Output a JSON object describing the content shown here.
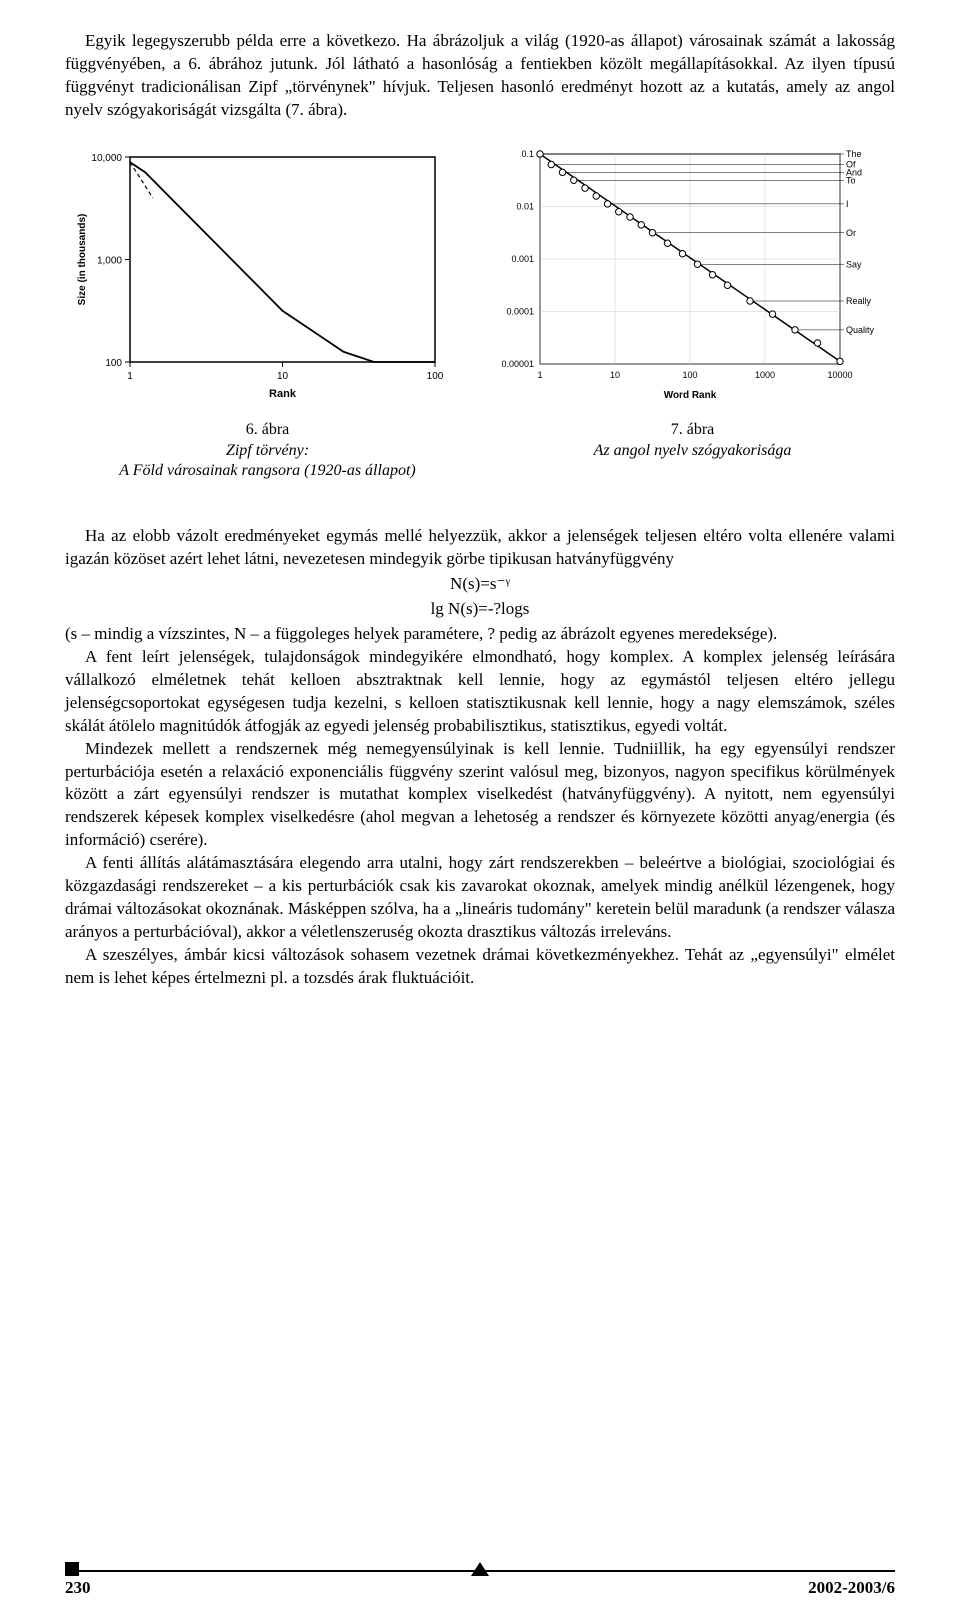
{
  "intro": {
    "p1": "Egyik legegyszerubb példa erre a következo. Ha ábrázoljuk a világ (1920-as állapot) városainak számát a lakosság függvényében, a 6. ábrához jutunk. Jól látható a hasonlóság a fentiekben közölt megállapításokkal. Az ilyen típusú függvényt tradicionálisan Zipf „törvénynek\" hívjuk. Teljesen hasonló eredményt hozott az a kutatás, amely az angol nyelv szógyakoriságát vizsgálta (7. ábra)."
  },
  "fig6": {
    "type": "loglog-line",
    "caption_num": "6. ábra",
    "caption_title": "Zipf törvény:",
    "caption_sub": "A Föld városainak rangsora (1920-as állapot)",
    "xlabel": "Rank",
    "ylabel": "Size (in thousands)",
    "xticks": [
      "1",
      "10",
      "100"
    ],
    "yticks": [
      "100",
      "1,000",
      "10,000"
    ],
    "line_color": "#000000",
    "background_color": "#ffffff",
    "frame_color": "#000000",
    "data_log": [
      [
        0,
        3.95
      ],
      [
        0.05,
        3.9
      ],
      [
        0.1,
        3.85
      ],
      [
        0.2,
        3.7
      ],
      [
        0.3,
        3.55
      ],
      [
        0.4,
        3.4
      ],
      [
        0.5,
        3.25
      ],
      [
        0.6,
        3.1
      ],
      [
        0.7,
        2.95
      ],
      [
        0.8,
        2.8
      ],
      [
        0.9,
        2.65
      ],
      [
        1.0,
        2.5
      ],
      [
        1.1,
        2.4
      ],
      [
        1.2,
        2.3
      ],
      [
        1.3,
        2.2
      ],
      [
        1.4,
        2.1
      ],
      [
        1.5,
        2.05
      ],
      [
        1.6,
        2.0
      ],
      [
        1.7,
        2.0
      ],
      [
        1.8,
        2.0
      ],
      [
        1.9,
        2.0
      ],
      [
        2.0,
        2.0
      ]
    ],
    "dashed_log": [
      [
        0,
        3.95
      ],
      [
        0.15,
        3.6
      ]
    ]
  },
  "fig7": {
    "type": "loglog-scatter-line",
    "caption_num": "7. ábra",
    "caption_title": "Az angol nyelv szógyakorisága",
    "xlabel": "Word Rank",
    "ylabel": "",
    "xticks": [
      "1",
      "10",
      "100",
      "1000",
      "10000"
    ],
    "yticks": [
      "0.00001",
      "0.0001",
      "0.001",
      "0.01",
      "0.1"
    ],
    "line_color": "#000000",
    "marker_color": "#ffffff",
    "marker_edge": "#000000",
    "background_color": "#ffffff",
    "frame_color": "#000000",
    "labels": [
      {
        "text": "The",
        "lx": 0,
        "ly": -1
      },
      {
        "text": "Of",
        "lx": 0.15,
        "ly": -1.2
      },
      {
        "text": "And",
        "lx": 0.3,
        "ly": -1.35
      },
      {
        "text": "To",
        "lx": 0.45,
        "ly": -1.5
      },
      {
        "text": "I",
        "lx": 0.9,
        "ly": -1.95
      },
      {
        "text": "Or",
        "lx": 1.5,
        "ly": -2.5
      },
      {
        "text": "Say",
        "lx": 2.1,
        "ly": -3.1
      },
      {
        "text": "Really",
        "lx": 2.8,
        "ly": -3.8
      },
      {
        "text": "Quality",
        "lx": 3.4,
        "ly": -4.35
      }
    ],
    "points_log": [
      [
        0,
        -1
      ],
      [
        0.15,
        -1.2
      ],
      [
        0.3,
        -1.35
      ],
      [
        0.45,
        -1.5
      ],
      [
        0.6,
        -1.65
      ],
      [
        0.75,
        -1.8
      ],
      [
        0.9,
        -1.95
      ],
      [
        1.05,
        -2.1
      ],
      [
        1.2,
        -2.2
      ],
      [
        1.35,
        -2.35
      ],
      [
        1.5,
        -2.5
      ],
      [
        1.7,
        -2.7
      ],
      [
        1.9,
        -2.9
      ],
      [
        2.1,
        -3.1
      ],
      [
        2.3,
        -3.3
      ],
      [
        2.5,
        -3.5
      ],
      [
        2.8,
        -3.8
      ],
      [
        3.1,
        -4.05
      ],
      [
        3.4,
        -4.35
      ],
      [
        3.7,
        -4.6
      ],
      [
        4.0,
        -4.95
      ]
    ]
  },
  "body": {
    "p2": "Ha az elobb vázolt eredményeket egymás mellé helyezzük, akkor a jelenségek teljesen eltéro volta ellenére valami igazán közöset azért lehet látni, nevezetesen mindegyik görbe tipikusan hatványfüggvény",
    "formula1": "N(s)=s⁻ᵞ",
    "formula2": "lg N(s)=-?logs",
    "p3": "(s – mindig a vízszintes, N – a függoleges helyek paramétere, ? pedig az ábrázolt egyenes meredeksége).",
    "p4": "A fent leírt jelenségek, tulajdonságok mindegyikére elmondható, hogy komplex. A komplex jelenség leírására vállalkozó elméletnek tehát kelloen absztraktnak kell lennie, hogy az egymástól teljesen eltéro jellegu jelenségcsoportokat egységesen tudja kezelni, s kelloen statisztikusnak kell lennie, hogy a nagy elemszámok, széles skálát átölelo magnitúdók átfogják az egyedi jelenség probabilisztikus, statisztikus, egyedi voltát.",
    "p5": "Mindezek mellett a rendszernek még nemegyensúlyinak is kell lennie. Tudniillik, ha egy egyensúlyi rendszer perturbációja esetén a relaxáció exponenciális függvény szerint valósul meg, bizonyos, nagyon specifikus körülmények között a zárt egyensúlyi rendszer is mutathat komplex viselkedést (hatványfüggvény). A nyitott, nem egyensúlyi rendszerek képesek komplex viselkedésre (ahol megvan a lehetoség a rendszer és környezete közötti anyag/energia (és információ) cserére).",
    "p6": "A fenti állítás alátámasztására elegendo arra utalni, hogy zárt rendszerekben – beleértve a biológiai, szociológiai és közgazdasági rendszereket – a kis perturbációk csak kis zavarokat okoznak, amelyek mindig anélkül lézengenek, hogy drámai változásokat okoznának. Másképpen szólva, ha a „lineáris tudomány\" keretein belül maradunk (a rendszer válasza arányos a perturbációval), akkor a véletlenszeruség okozta drasztikus változás irreleváns.",
    "p7": "A szeszélyes, ámbár kicsi változások sohasem vezetnek drámai következményekhez. Tehát az „egyensúlyi\" elmélet nem is lehet képes értelmezni pl. a tozsdés árak fluktuációit."
  },
  "footer": {
    "page": "230",
    "issue": "2002-2003/6"
  },
  "style": {
    "text_color": "#000000",
    "bg_color": "#ffffff",
    "body_fontsize": 17,
    "caption_fontsize": 16
  }
}
